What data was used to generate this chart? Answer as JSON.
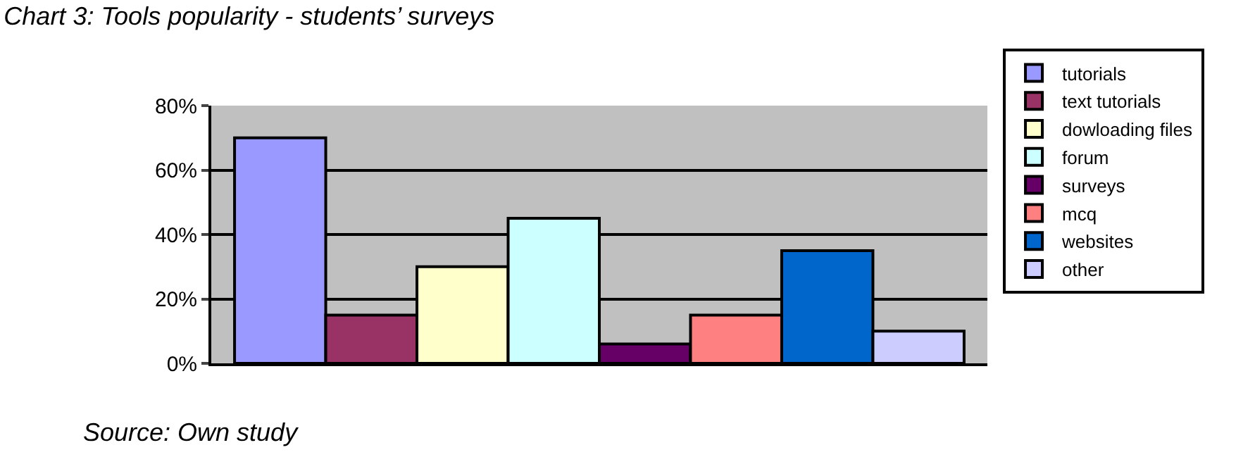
{
  "chart_data": {
    "type": "bar",
    "title": "Chart 3: Tools popularity - students’ surveys",
    "categories": [
      null
    ],
    "series": [
      {
        "name": "tutorials",
        "color": "#9999ff",
        "values": [
          70
        ]
      },
      {
        "name": "text tutorials",
        "color": "#993366",
        "values": [
          15
        ]
      },
      {
        "name": "dowloading files",
        "color": "#ffffcc",
        "values": [
          30
        ]
      },
      {
        "name": "forum",
        "color": "#ccffff",
        "values": [
          45
        ]
      },
      {
        "name": "surveys",
        "color": "#660066",
        "values": [
          6
        ]
      },
      {
        "name": "mcq",
        "color": "#ff8080",
        "values": [
          15
        ]
      },
      {
        "name": "websites",
        "color": "#0066cc",
        "values": [
          35
        ]
      },
      {
        "name": "other",
        "color": "#ccccff",
        "values": [
          10
        ]
      }
    ],
    "ylim": [
      0,
      80
    ],
    "yticks": [
      {
        "value": 0,
        "label": "0%"
      },
      {
        "value": 20,
        "label": "20%"
      },
      {
        "value": 40,
        "label": "40%"
      },
      {
        "value": 60,
        "label": "60%"
      },
      {
        "value": 80,
        "label": "80%"
      }
    ],
    "grid": "y",
    "legend": "right",
    "annotations": [
      "Source: Own study"
    ]
  }
}
